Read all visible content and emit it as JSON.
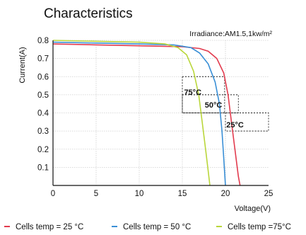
{
  "chart_data": {
    "type": "line",
    "title": "Characteristics",
    "annotation": "Irradiance:AM1.5,1kw/m²",
    "xlabel": "Voltage(V)",
    "ylabel": "Current(A)",
    "xlim": [
      0,
      25
    ],
    "ylim": [
      0,
      0.8
    ],
    "x_ticks": [
      "0",
      "5",
      "10",
      "15",
      "20",
      "25"
    ],
    "y_ticks": [
      "0.1",
      "0.2",
      "0.3",
      "0.4",
      "0.5",
      "0.6",
      "0.7",
      "0.8"
    ],
    "grid": true,
    "legend_position": "bottom",
    "series": [
      {
        "name": "Cells temp  = 25 °C",
        "label": "25°C",
        "color": "#e23b4e",
        "points": [
          [
            0,
            0.78
          ],
          [
            5,
            0.775
          ],
          [
            10,
            0.77
          ],
          [
            15,
            0.765
          ],
          [
            17,
            0.755
          ],
          [
            18,
            0.74
          ],
          [
            19,
            0.7
          ],
          [
            19.8,
            0.62
          ],
          [
            20.3,
            0.5
          ],
          [
            20.7,
            0.35
          ],
          [
            21.1,
            0.2
          ],
          [
            21.5,
            0.05
          ],
          [
            21.7,
            0
          ]
        ]
      },
      {
        "name": "Cells temp  = 50 °C",
        "label": "50°C",
        "color": "#3a8fd6",
        "points": [
          [
            0,
            0.79
          ],
          [
            5,
            0.785
          ],
          [
            10,
            0.78
          ],
          [
            14,
            0.775
          ],
          [
            16,
            0.76
          ],
          [
            17,
            0.73
          ],
          [
            18,
            0.67
          ],
          [
            18.8,
            0.57
          ],
          [
            19.3,
            0.45
          ],
          [
            19.6,
            0.3
          ],
          [
            19.8,
            0.15
          ],
          [
            20,
            0
          ]
        ]
      },
      {
        "name": "Cells temp  =75°C",
        "label": "75°C",
        "color": "#b9d63a",
        "points": [
          [
            0,
            0.8
          ],
          [
            5,
            0.795
          ],
          [
            10,
            0.79
          ],
          [
            13,
            0.78
          ],
          [
            14.5,
            0.76
          ],
          [
            15.5,
            0.72
          ],
          [
            16.3,
            0.63
          ],
          [
            16.9,
            0.5
          ],
          [
            17.3,
            0.35
          ],
          [
            17.7,
            0.2
          ],
          [
            18,
            0.08
          ],
          [
            18.2,
            0
          ]
        ]
      }
    ],
    "boxes": [
      {
        "series": "Cells temp  =75°C",
        "x": [
          15,
          19.9
        ],
        "y": [
          0.4,
          0.6
        ]
      },
      {
        "series": "Cells temp  = 50 °C",
        "x": [
          15,
          21.5
        ],
        "y": [
          0.4,
          0.5
        ]
      },
      {
        "series": "Cells temp  = 25 °C",
        "x": [
          20,
          25
        ],
        "y": [
          0.3,
          0.4
        ]
      }
    ]
  }
}
